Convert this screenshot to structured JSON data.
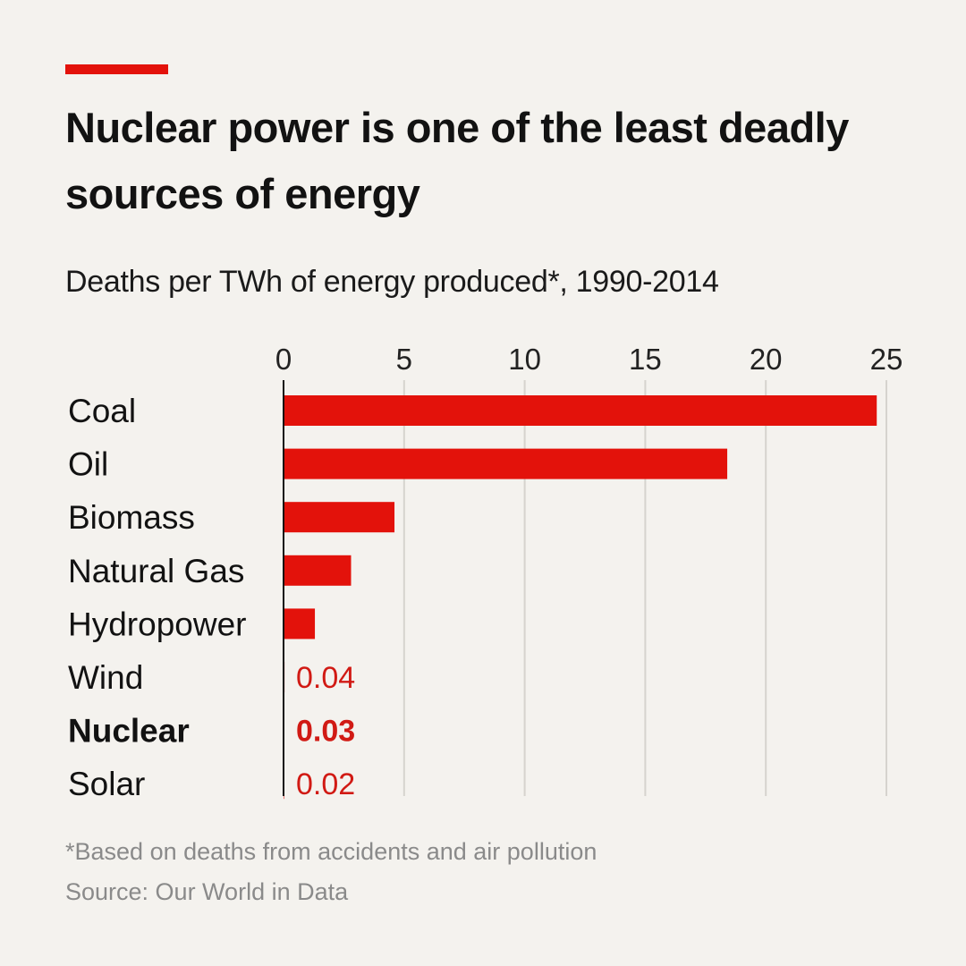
{
  "header": {
    "title": "Nuclear power is one of the least deadly sources of energy",
    "subtitle": "Deaths per TWh of energy produced*, 1990-2014"
  },
  "footer": {
    "footnote": "*Based on deaths from accidents and air pollution",
    "source": "Source: Our World in Data"
  },
  "colors": {
    "accent": "#e3120b",
    "bar": "#e3120b",
    "value_text": "#d11a14",
    "grid": "#d6d3ce",
    "background": "#f4f2ee"
  },
  "chart_data": {
    "type": "bar",
    "orientation": "horizontal",
    "title": "Nuclear power is one of the least deadly sources of energy",
    "subtitle": "Deaths per TWh of energy produced*, 1990-2014",
    "categories": [
      "Coal",
      "Oil",
      "Biomass",
      "Natural Gas",
      "Hydropower",
      "Wind",
      "Nuclear",
      "Solar"
    ],
    "values": [
      24.6,
      18.4,
      4.6,
      2.8,
      1.3,
      0.04,
      0.03,
      0.02
    ],
    "value_labels": [
      "",
      "",
      "",
      "",
      "",
      "0.04",
      "0.03",
      "0.02"
    ],
    "highlight": "Nuclear",
    "xlim": [
      0,
      25
    ],
    "xticks": [
      0,
      5,
      10,
      15,
      20,
      25
    ],
    "xtick_labels": [
      "0",
      "5",
      "10",
      "15",
      "20",
      "25"
    ],
    "axis_position": "top",
    "grid": true,
    "legend": "none"
  }
}
